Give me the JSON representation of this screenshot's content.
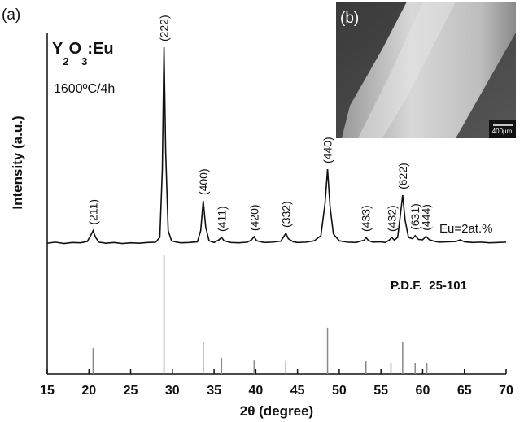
{
  "chart_data": {
    "type": "line",
    "panel_label": "(a)",
    "sample_formula": [
      "Y",
      "2",
      "O",
      "3",
      ":Eu"
    ],
    "condition": "1600ºC/4h",
    "xlabel": "2θ (degree)",
    "ylabel": "Intensity (a.u.)",
    "xlim": [
      15,
      70
    ],
    "xticks": [
      15,
      20,
      25,
      30,
      35,
      40,
      45,
      50,
      55,
      60,
      65,
      70
    ],
    "ylim": [
      0,
      100
    ],
    "series": [
      {
        "name": "Eu=2at.%",
        "style": "line",
        "color": "#111111",
        "x": [
          15,
          16,
          17,
          18,
          19,
          19.8,
          20.2,
          20.5,
          20.8,
          21.2,
          22,
          23,
          24,
          25,
          26,
          27,
          28,
          28.5,
          28.8,
          29.0,
          29.2,
          29.5,
          29.9,
          30.5,
          31,
          32,
          33,
          33.4,
          33.7,
          34.0,
          34.4,
          35,
          35.6,
          35.9,
          36.2,
          37,
          38,
          39,
          39.5,
          39.8,
          40.1,
          41,
          42,
          43,
          43.4,
          43.6,
          43.9,
          44.5,
          45,
          46,
          47,
          47.8,
          48.3,
          48.6,
          48.9,
          49.3,
          50,
          51,
          52,
          53,
          53.2,
          53.5,
          54,
          55,
          55.5,
          56,
          56.3,
          56.6,
          57,
          57.3,
          57.6,
          57.9,
          58.3,
          58.8,
          59.1,
          59.5,
          60,
          60.4,
          60.8,
          61.5,
          62,
          63,
          64,
          64.5,
          65,
          66,
          67,
          68,
          69,
          70
        ],
        "values": [
          38.3,
          38.6,
          38.2,
          38.5,
          38.4,
          38.8,
          40.5,
          42,
          40,
          38.6,
          38.3,
          38.5,
          38.2,
          38.4,
          38.3,
          38.5,
          38.6,
          40,
          60,
          95.7,
          65,
          42,
          39,
          38.6,
          38.4,
          38.5,
          38.7,
          42,
          50.7,
          43,
          39,
          38.5,
          39.3,
          40,
          39,
          38.5,
          38.4,
          38.6,
          39.3,
          40.2,
          39,
          38.5,
          38.6,
          38.9,
          40.4,
          41.2,
          39.6,
          38.7,
          38.5,
          38.6,
          39,
          40.5,
          50,
          60,
          49,
          41,
          39,
          38.6,
          38.5,
          39.2,
          40,
          39.1,
          38.6,
          38.7,
          38.5,
          39.2,
          40,
          39.2,
          40,
          46,
          52.4,
          45,
          40,
          39.6,
          40.5,
          39.4,
          39.3,
          40.3,
          39.3,
          38.8,
          38.6,
          38.7,
          38.8,
          39.3,
          38.7,
          38.5,
          38.6,
          38.4,
          38.5,
          38.6
        ]
      },
      {
        "name": "P.D.F.  25-101",
        "style": "stem",
        "color": "#888888",
        "x": [
          20.5,
          29.0,
          33.7,
          35.9,
          39.8,
          43.6,
          48.6,
          53.2,
          56.2,
          57.6,
          59.1,
          60.5
        ],
        "values": [
          7.6,
          35,
          9.3,
          4.8,
          4,
          3.8,
          13.6,
          3.8,
          3.1,
          9.5,
          3.1,
          3.3
        ]
      }
    ],
    "peaks": [
      {
        "label": "(211)",
        "x": 20.5
      },
      {
        "label": "(222)",
        "x": 29.0
      },
      {
        "label": "(400)",
        "x": 33.7
      },
      {
        "label": "(411)",
        "x": 35.9
      },
      {
        "label": "(420)",
        "x": 39.8
      },
      {
        "label": "(332)",
        "x": 43.6
      },
      {
        "label": "(440)",
        "x": 48.6
      },
      {
        "label": "(433)",
        "x": 53.2
      },
      {
        "label": "(432)",
        "x": 56.3
      },
      {
        "label": "(622)",
        "x": 57.6
      },
      {
        "label": "(631)",
        "x": 59.1
      },
      {
        "label": "(444)",
        "x": 60.4
      }
    ],
    "inset": {
      "label": "(b)",
      "scale_bar": "400μm"
    }
  }
}
